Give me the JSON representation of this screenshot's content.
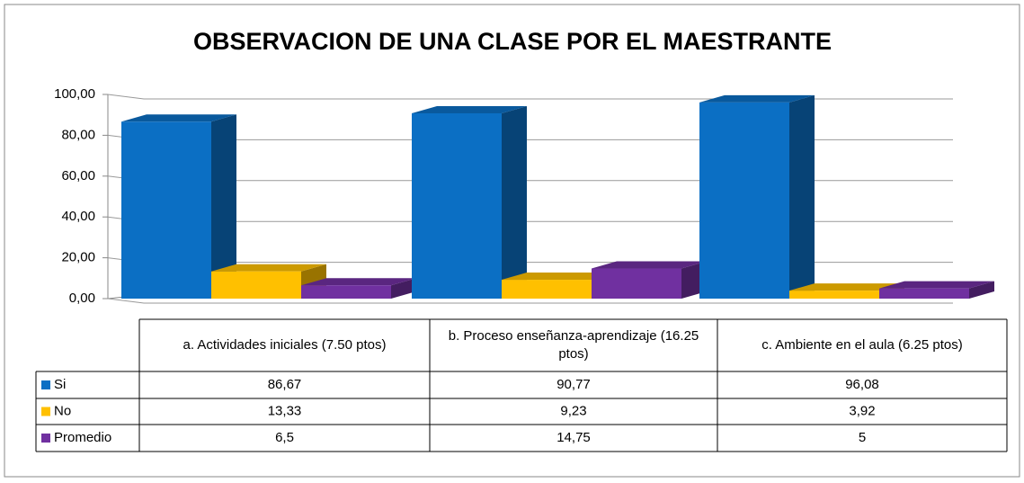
{
  "chart_data": {
    "type": "bar3d",
    "title": "OBSERVACION DE UNA CLASE POR EL MAESTRANTE",
    "categories": [
      "a.    Actividades iniciales       (7.50 ptos)",
      "b.  Proceso enseñanza-aprendizaje (16.25  ptos)",
      "c.  Ambiente en el aula (6.25  ptos)"
    ],
    "series": [
      {
        "name": "Si",
        "color": "#0b6fc4",
        "values": [
          86.67,
          90.77,
          96.08
        ],
        "value_labels": [
          "86,67",
          "90,77",
          "96,08"
        ]
      },
      {
        "name": "No",
        "color": "#ffc000",
        "values": [
          13.33,
          9.23,
          3.92
        ],
        "value_labels": [
          "13,33",
          "9,23",
          "3,92"
        ]
      },
      {
        "name": "Promedio",
        "color": "#7030a0",
        "values": [
          6.5,
          14.75,
          5
        ],
        "value_labels": [
          "6,5",
          "14,75",
          "5"
        ]
      }
    ],
    "ylim": [
      0,
      100
    ],
    "yticks": [
      {
        "value": 0,
        "label": "0,00"
      },
      {
        "value": 20,
        "label": "20,00"
      },
      {
        "value": 40,
        "label": "40,00"
      },
      {
        "value": 60,
        "label": "60,00"
      },
      {
        "value": 80,
        "label": "80,00"
      },
      {
        "value": 100,
        "label": "100,00"
      }
    ],
    "grid": true
  }
}
